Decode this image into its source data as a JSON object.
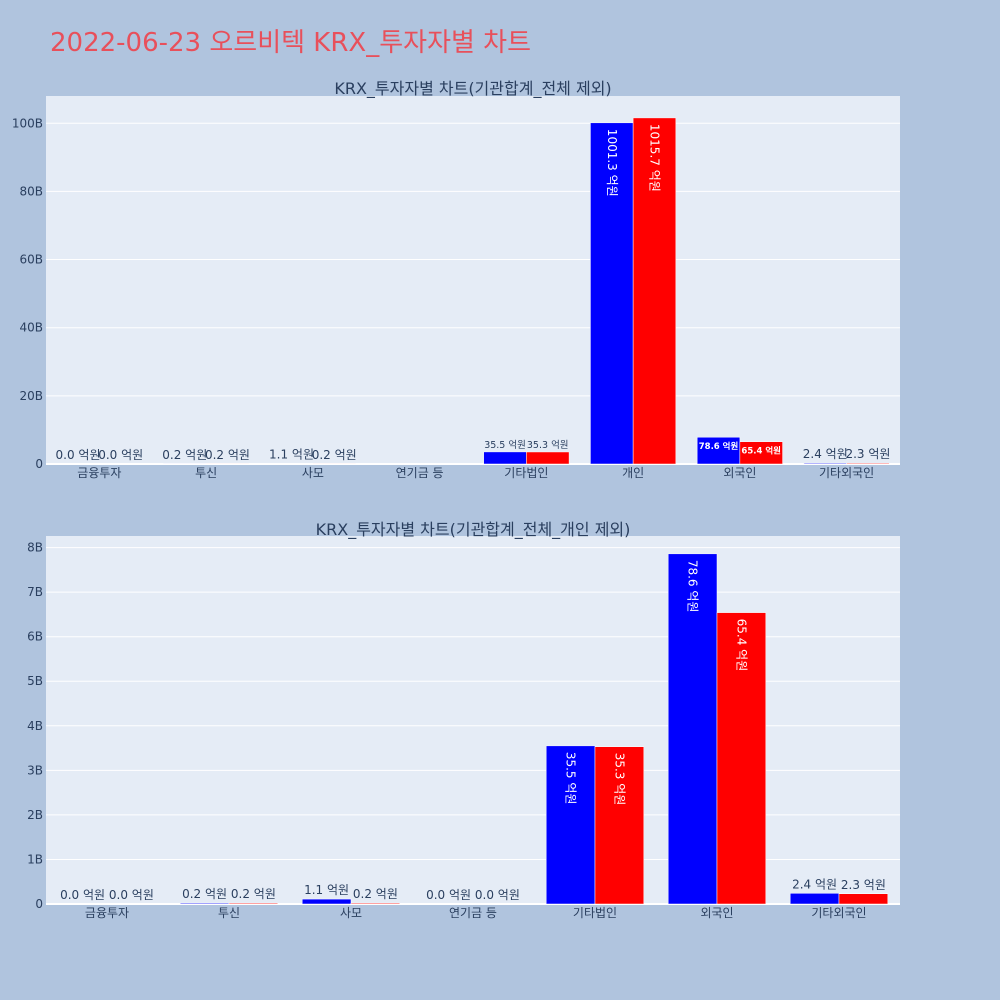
{
  "title": "2022-06-23 오르비텍 KRX_투자자별 차트",
  "colors": {
    "buy": "#0000ff",
    "sell": "#ff0000",
    "plot_bg": "#e5ecf6",
    "page_bg": "#b0c4de"
  },
  "chart_data": [
    {
      "type": "bar",
      "title": "KRX_투자자별 차트(기관합계_전체 제외)",
      "categories": [
        "금융투자",
        "투신",
        "사모",
        "연기금 등",
        "기타법인",
        "개인",
        "외국인",
        "기타외국인"
      ],
      "series": [
        {
          "values": [
            0.0,
            0.2,
            1.1,
            0.0,
            35.5,
            1001.3,
            78.6,
            2.4
          ],
          "labels": [
            "0.0 억원",
            "0.2 억원",
            "1.1 억원",
            "",
            "35.5 억원",
            "1001.3 억원",
            "78.6 억원",
            "2.4 억원"
          ]
        },
        {
          "values": [
            0.0,
            0.2,
            0.2,
            0.0,
            35.3,
            1015.7,
            65.4,
            2.3
          ],
          "labels": [
            "0.0 억원",
            "0.2 억원",
            "0.2 억원",
            "",
            "35.3 억원",
            "1015.7 억원",
            "65.4 억원",
            "2.3 억원"
          ]
        }
      ],
      "yticks": [
        0,
        200,
        400,
        600,
        800,
        1000
      ],
      "ytick_labels": [
        "0",
        "20B",
        "40B",
        "60B",
        "80B",
        "100B"
      ],
      "ylim": [
        0,
        1080
      ]
    },
    {
      "type": "bar",
      "title": "KRX_투자자별 차트(기관합계_전체_개인 제외)",
      "categories": [
        "금융투자",
        "투신",
        "사모",
        "연기금 등",
        "기타법인",
        "외국인",
        "기타외국인"
      ],
      "series": [
        {
          "values": [
            0.0,
            0.2,
            1.1,
            0.0,
            35.5,
            78.6,
            2.4
          ],
          "labels": [
            "0.0 억원",
            "0.2 억원",
            "1.1 억원",
            "0.0 억원",
            "35.5 억원",
            "78.6 억원",
            "2.4 억원"
          ]
        },
        {
          "values": [
            0.0,
            0.2,
            0.2,
            0.0,
            35.3,
            65.4,
            2.3
          ],
          "labels": [
            "0.0 억원",
            "0.2 억원",
            "0.2 억원",
            "0.0 억원",
            "35.3 억원",
            "65.4 억원",
            "2.3 억원"
          ]
        }
      ],
      "yticks": [
        0,
        10,
        20,
        30,
        40,
        50,
        60,
        70,
        80
      ],
      "ytick_labels": [
        "0",
        "1B",
        "2B",
        "3B",
        "4B",
        "5B",
        "6B",
        "7B",
        "8B"
      ],
      "ylim": [
        0,
        82.6
      ]
    }
  ]
}
